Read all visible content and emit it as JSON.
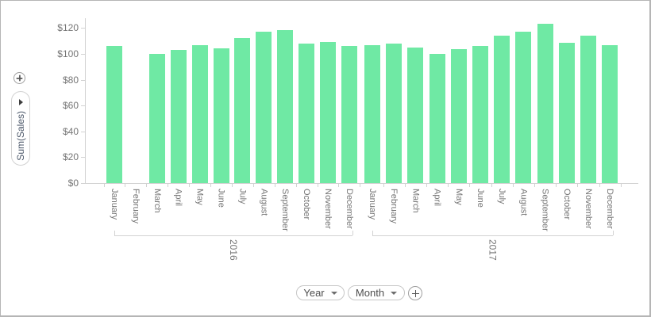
{
  "left_controls": {
    "add_value_button": {
      "icon": "plus"
    },
    "value_field_pill": {
      "label": "Sum(Sales)",
      "icon": "arrow-right"
    }
  },
  "bottom_controls": {
    "year_pill": {
      "label": "Year",
      "icon": "chevron-down"
    },
    "month_pill": {
      "label": "Month",
      "icon": "chevron-down"
    },
    "add_dimension_button": {
      "icon": "plus"
    }
  },
  "chart_data": {
    "type": "bar",
    "title": "",
    "xlabel": "",
    "ylabel": "Sum(Sales)",
    "ylim": [
      0,
      130
    ],
    "grid": false,
    "legend": false,
    "bar_color": "#6fe9a4",
    "axis_color": "#d2d2d2",
    "label_color": "#757575",
    "y_ticks": [
      {
        "label": "$120",
        "value": 120
      },
      {
        "label": "$100",
        "value": 100
      },
      {
        "label": "$80",
        "value": 80
      },
      {
        "label": "$60",
        "value": 60
      },
      {
        "label": "$40",
        "value": 40
      },
      {
        "label": "$20",
        "value": 20
      },
      {
        "label": "$0",
        "value": 0
      }
    ],
    "groups": [
      {
        "label": "2016",
        "categories": [
          "January",
          "February",
          "March",
          "April",
          "May",
          "June",
          "July",
          "August",
          "September",
          "October",
          "November",
          "December"
        ],
        "values": [
          106,
          null,
          100,
          103,
          106.5,
          104,
          112.5,
          117,
          118.5,
          108,
          109.5,
          106
        ]
      },
      {
        "label": "2017",
        "categories": [
          "January",
          "February",
          "March",
          "April",
          "May",
          "June",
          "July",
          "August",
          "September",
          "October",
          "November",
          "December"
        ],
        "values": [
          106.5,
          108,
          105,
          100,
          103.5,
          106,
          114,
          117,
          123.5,
          108.5,
          114,
          106.5
        ]
      }
    ]
  }
}
